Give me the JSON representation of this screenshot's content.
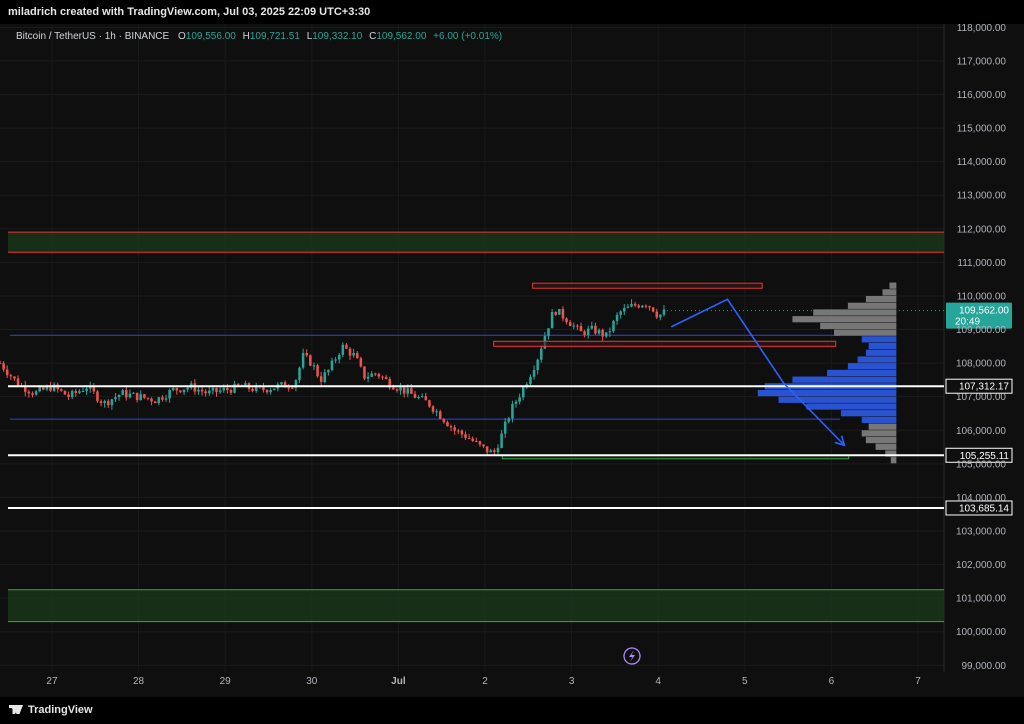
{
  "header": {
    "created_by": "miladrich created with TradingView.com, Jul 03, 2025 22:09 UTC+3:30"
  },
  "legend": {
    "symbol": "Bitcoin / TetherUS · 1h · BINANCE",
    "open_label": "O",
    "open": "109,556.00",
    "high_label": "H",
    "high": "109,721.51",
    "low_label": "L",
    "low": "109,332.10",
    "close_label": "C",
    "close": "109,562.00",
    "change": "+6.00 (+0.01%)"
  },
  "price_badge": {
    "price": "109,562.00",
    "countdown": "20:49"
  },
  "footer": {
    "brand": "TradingView"
  },
  "colors": {
    "up": "#26a69a",
    "down": "#ef5350",
    "arrow": "#2962ff",
    "zone": "#1b3a1b",
    "zone_line_red": "#e53935",
    "zone_line_green": "#43a047"
  },
  "chart_data": {
    "type": "candlestick",
    "title": "Bitcoin / TetherUS · 1h · BINANCE",
    "y_ticks": [
      "99,000.00",
      "100,000.00",
      "101,000.00",
      "102,000.00",
      "103,000.00",
      "104,000.00",
      "105,000.00",
      "106,000.00",
      "107,000.00",
      "108,000.00",
      "109,000.00",
      "110,000.00",
      "111,000.00",
      "112,000.00",
      "113,000.00",
      "114,000.00",
      "115,000.00",
      "116,000.00",
      "117,000.00",
      "118,000.00"
    ],
    "ylim": [
      98800,
      118100
    ],
    "x_ticks": [
      "27",
      "28",
      "29",
      "30",
      "Jul",
      "2",
      "3",
      "4",
      "5",
      "6",
      "7"
    ],
    "x_tick_days": [
      0,
      1,
      2,
      3,
      4,
      5,
      6,
      7,
      8,
      9,
      10
    ],
    "xlim": [
      -0.6,
      10.3
    ],
    "price_path": [
      [
        -0.6,
        108000
      ],
      [
        -0.4,
        107400
      ],
      [
        -0.2,
        107100
      ],
      [
        0,
        107300
      ],
      [
        0.2,
        107000
      ],
      [
        0.4,
        107300
      ],
      [
        0.6,
        106800
      ],
      [
        0.8,
        107100
      ],
      [
        1.0,
        107000
      ],
      [
        1.2,
        106900
      ],
      [
        1.4,
        107200
      ],
      [
        1.6,
        107300
      ],
      [
        1.8,
        107100
      ],
      [
        2.0,
        107200
      ],
      [
        2.2,
        107300
      ],
      [
        2.4,
        107200
      ],
      [
        2.6,
        107300
      ],
      [
        2.8,
        107400
      ],
      [
        2.9,
        108200
      ],
      [
        3.0,
        108000
      ],
      [
        3.1,
        107500
      ],
      [
        3.2,
        107800
      ],
      [
        3.35,
        108500
      ],
      [
        3.5,
        108200
      ],
      [
        3.6,
        107600
      ],
      [
        3.75,
        107700
      ],
      [
        3.9,
        107400
      ],
      [
        4.05,
        107200
      ],
      [
        4.2,
        107000
      ],
      [
        4.35,
        106800
      ],
      [
        4.5,
        106400
      ],
      [
        4.65,
        106000
      ],
      [
        4.8,
        105800
      ],
      [
        4.95,
        105500
      ],
      [
        5.1,
        105300
      ],
      [
        5.2,
        105900
      ],
      [
        5.3,
        106600
      ],
      [
        5.45,
        107300
      ],
      [
        5.6,
        108100
      ],
      [
        5.7,
        108900
      ],
      [
        5.8,
        109600
      ],
      [
        5.95,
        109300
      ],
      [
        6.1,
        108900
      ],
      [
        6.25,
        109000
      ],
      [
        6.4,
        108800
      ],
      [
        6.55,
        109500
      ],
      [
        6.7,
        109700
      ],
      [
        6.85,
        109800
      ],
      [
        6.95,
        109600
      ],
      [
        7.0,
        109400
      ],
      [
        7.1,
        109562
      ]
    ],
    "levels": [
      {
        "value": 107312.17,
        "label": "107,312.17"
      },
      {
        "value": 105255.11,
        "label": "105,255.11"
      },
      {
        "value": 103685.14,
        "label": "103,685.14"
      }
    ],
    "zones": [
      {
        "from": 111300,
        "to": 111900,
        "border": "red"
      },
      {
        "from": 100300,
        "to": 101250,
        "border": "green"
      }
    ],
    "blue_lines": [
      108830,
      106330
    ],
    "boxes": [
      {
        "x0": 5.55,
        "x1": 8.2,
        "from": 110230,
        "to": 110380,
        "border": "red"
      },
      {
        "x0": 5.1,
        "x1": 9.05,
        "from": 108500,
        "to": 108650,
        "border": "red"
      },
      {
        "x0": 5.2,
        "x1": 9.2,
        "from": 105150,
        "to": 105250,
        "border": "green"
      }
    ],
    "projection": [
      [
        7.15,
        109080
      ],
      [
        7.8,
        109900
      ],
      [
        8.45,
        107400
      ],
      [
        9.15,
        105550
      ]
    ],
    "volume_profile": {
      "x_right": 9.75,
      "max_len": 1.6,
      "bins": [
        [
          110400,
          0.05
        ],
        [
          110200,
          0.1
        ],
        [
          110000,
          0.22
        ],
        [
          109800,
          0.35
        ],
        [
          109600,
          0.6
        ],
        [
          109400,
          0.75
        ],
        [
          109200,
          0.55
        ],
        [
          109000,
          0.45
        ],
        [
          108800,
          0.25
        ],
        [
          108600,
          0.2
        ],
        [
          108400,
          0.22
        ],
        [
          108200,
          0.28
        ],
        [
          108000,
          0.35
        ],
        [
          107800,
          0.5
        ],
        [
          107600,
          0.75
        ],
        [
          107400,
          0.95
        ],
        [
          107200,
          1.0
        ],
        [
          107000,
          0.85
        ],
        [
          106800,
          0.65
        ],
        [
          106600,
          0.4
        ],
        [
          106400,
          0.25
        ],
        [
          106200,
          0.2
        ],
        [
          106000,
          0.25
        ],
        [
          105800,
          0.22
        ],
        [
          105600,
          0.15
        ],
        [
          105400,
          0.08
        ],
        [
          105200,
          0.04
        ]
      ]
    }
  }
}
